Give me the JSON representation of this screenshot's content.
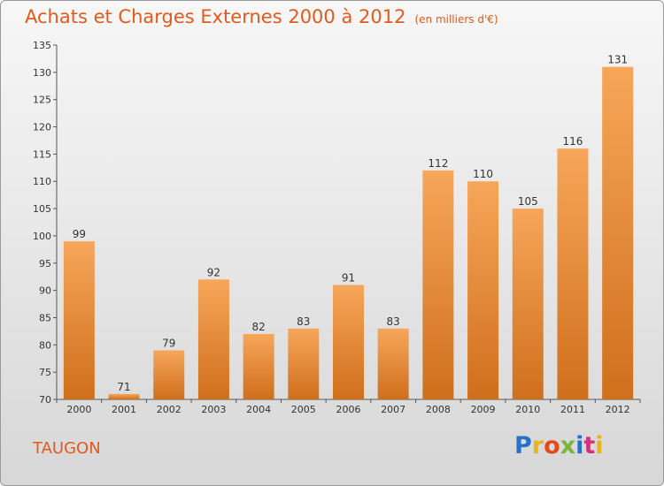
{
  "title": "Achats et Charges Externes 2000 à 2012",
  "subtitle": "(en milliers d'€)",
  "place": "TAUGON",
  "logo": {
    "letters": [
      "P",
      "r",
      "o",
      "x",
      "i",
      "t",
      "i"
    ],
    "colors": [
      "#2a6fc9",
      "#e8b41d",
      "#e34a1e",
      "#7ab43a",
      "#2a6fc9",
      "#d1327a",
      "#e8b41d"
    ]
  },
  "colors": {
    "bar_top": "#f7a65a",
    "bar_bottom": "#cf6f1c",
    "title": "#e25a1c"
  },
  "chart_data": {
    "type": "bar",
    "title": "Achats et Charges Externes 2000 à 2012",
    "ylabel": "en milliers d'€",
    "xlabel": "",
    "categories": [
      "2000",
      "2001",
      "2002",
      "2003",
      "2004",
      "2005",
      "2006",
      "2007",
      "2008",
      "2009",
      "2010",
      "2011",
      "2012"
    ],
    "values": [
      99,
      71,
      79,
      92,
      82,
      83,
      91,
      83,
      112,
      110,
      105,
      116,
      131
    ],
    "ylim": [
      70,
      135
    ],
    "yticks": [
      70,
      75,
      80,
      85,
      90,
      95,
      100,
      105,
      110,
      115,
      120,
      125,
      130,
      135
    ],
    "grid": false,
    "data_labels": true
  }
}
